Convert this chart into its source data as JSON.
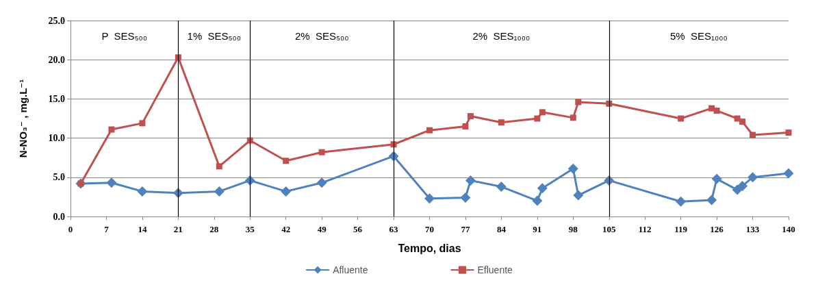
{
  "chart_data": {
    "type": "line",
    "xlabel": "Tempo, dias",
    "ylabel": "N-NO₃⁻ , mg.L⁻¹",
    "xlim": [
      0,
      140
    ],
    "xticks": [
      0,
      7,
      14,
      21,
      28,
      35,
      42,
      49,
      56,
      63,
      70,
      77,
      84,
      91,
      98,
      105,
      112,
      119,
      126,
      133,
      140
    ],
    "ylim": [
      0,
      25
    ],
    "yticks": [
      {
        "value": 0,
        "label": "0.0"
      },
      {
        "value": 5,
        "label": "5.0"
      },
      {
        "value": 10,
        "label": "10.0"
      },
      {
        "value": 15,
        "label": "15.0"
      },
      {
        "value": 20,
        "label": "20.0"
      },
      {
        "value": 25,
        "label": "25.0"
      }
    ],
    "grid": "y",
    "legend": "bottom",
    "series": [
      {
        "name": "Afluente",
        "color": "#4f81bd",
        "marker": "diamond",
        "x": [
          2,
          8,
          14,
          21,
          29,
          35,
          42,
          49,
          63,
          70,
          77,
          78,
          84,
          91,
          92,
          98,
          99,
          105,
          119,
          125,
          126,
          130,
          131,
          133,
          140
        ],
        "values": [
          4.2,
          4.3,
          3.2,
          3.0,
          3.2,
          4.6,
          3.2,
          4.3,
          7.7,
          2.3,
          2.4,
          4.6,
          3.8,
          2.0,
          3.6,
          6.1,
          2.7,
          4.6,
          1.9,
          2.1,
          4.8,
          3.4,
          3.9,
          5.0,
          5.5
        ]
      },
      {
        "name": "Efluente",
        "color": "#c0504d",
        "marker": "square",
        "x": [
          2,
          8,
          14,
          21,
          29,
          35,
          42,
          49,
          63,
          70,
          77,
          78,
          84,
          91,
          92,
          98,
          99,
          105,
          119,
          125,
          126,
          130,
          131,
          133,
          140
        ],
        "values": [
          4.2,
          11.1,
          11.9,
          20.3,
          6.4,
          9.7,
          7.1,
          8.2,
          9.2,
          11.0,
          11.5,
          12.8,
          12.0,
          12.5,
          13.3,
          12.6,
          14.6,
          14.4,
          12.5,
          13.8,
          13.5,
          12.5,
          12.1,
          10.4,
          10.7
        ]
      }
    ],
    "ref_lines": [
      {
        "axis": "x",
        "value": 21,
        "color": "#000000"
      },
      {
        "axis": "x",
        "value": 35,
        "color": "#000000"
      },
      {
        "axis": "x",
        "value": 63,
        "color": "#000000"
      },
      {
        "axis": "x",
        "value": 105,
        "color": "#000000"
      }
    ],
    "annotations": [
      "P  SES₅₀₀",
      "1%  SES₅₀₀",
      "2%  SES₅₀₀",
      "2%  SES₁₀₀₀",
      "5%  SES₁₀₀₀"
    ]
  }
}
